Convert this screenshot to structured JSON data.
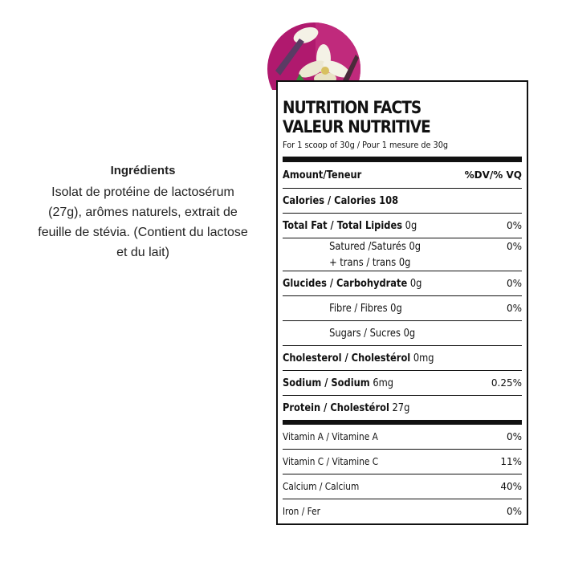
{
  "ingredients": {
    "title": "Ingrédients",
    "lines": [
      "Isolat de protéine de lactosérum",
      "(27g), arômes naturels, extrait de",
      "feuille de stévia. (Contient du lactose",
      "et du lait)"
    ]
  },
  "label": {
    "heading_en": "NUTRITION FACTS",
    "heading_fr": "VALEUR NUTRITIVE",
    "serving": "For 1 scoop of 30g / Pour 1 mesure de 30g",
    "amount_header": "Amount/Teneur",
    "dv_header": "%DV/% VQ",
    "calories_label": "Calories / Calories 108",
    "rows": [
      {
        "name": "Total Fat / Total Lipides",
        "amount": "0g",
        "dv": "0%"
      },
      {
        "name": "Satured /Saturés",
        "amount": "0g",
        "dv": "0%"
      },
      {
        "name": "+ trans / trans",
        "amount": "0g",
        "dv": ""
      },
      {
        "name": "Glucides / Carbohydrate",
        "amount": "0g",
        "dv": "0%"
      },
      {
        "name": "Fibre / Fibres",
        "amount": "0g",
        "dv": "0%"
      },
      {
        "name": "Sugars / Sucres",
        "amount": "0g",
        "dv": ""
      },
      {
        "name": "Cholesterol / Cholestérol",
        "amount": "0mg",
        "dv": ""
      },
      {
        "name": "Sodium / Sodium",
        "amount": "6mg",
        "dv": "0.25%"
      },
      {
        "name": "Protein / Cholestérol",
        "amount": "27g",
        "dv": ""
      }
    ],
    "vitamins": [
      {
        "name": "Vitamin A / Vitamine A",
        "dv": "0%"
      },
      {
        "name": "Vitamin C / Vitamine C",
        "dv": "11%"
      },
      {
        "name": "Calcium / Calcium",
        "dv": "40%"
      },
      {
        "name": "Iron / Fer",
        "dv": "0%"
      }
    ]
  },
  "colors": {
    "flower_background": "#b0196e",
    "flower_petal": "#f4f2e6"
  }
}
